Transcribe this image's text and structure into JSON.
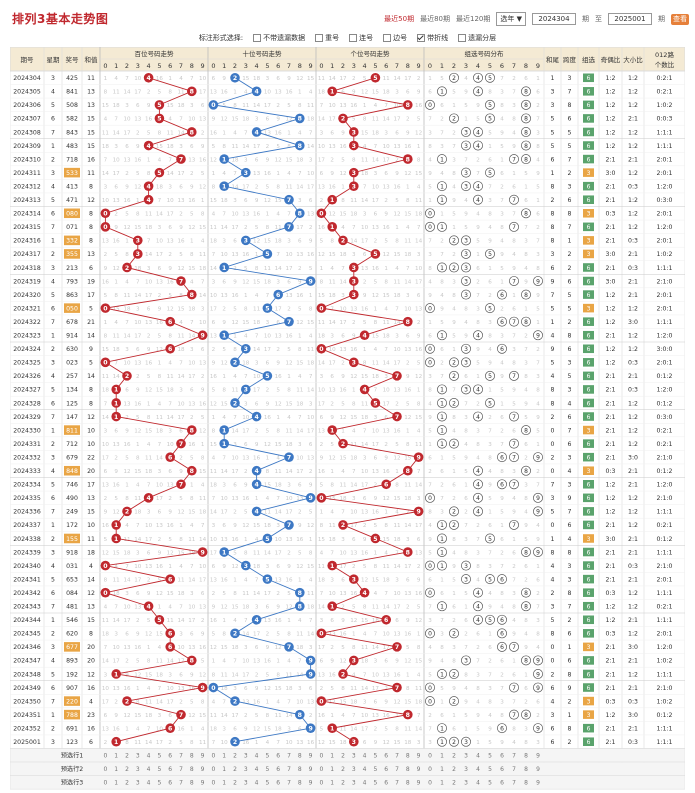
{
  "app": {
    "title": "排列3基本走势图",
    "period_links": [
      "最近50期",
      "最近80期",
      "最近120期"
    ],
    "active_period_index": 0,
    "select_label": "选年",
    "from_value": "2024304",
    "from_suffix": "期",
    "to_label": "至",
    "to_value": "2025001",
    "to_suffix": "期",
    "go_label": "查看"
  },
  "filters": {
    "label": "标注形式选择:",
    "options": [
      {
        "label": "不带遗漏数据",
        "checked": false
      },
      {
        "label": "重号",
        "checked": false
      },
      {
        "label": "连号",
        "checked": false
      },
      {
        "label": "边号",
        "checked": false
      },
      {
        "label": "带折线",
        "checked": true
      },
      {
        "label": "遗漏分层",
        "checked": false
      }
    ]
  },
  "headers": {
    "issue": "期号",
    "weekday": "星期",
    "prize": "奖号",
    "sum": "和值",
    "hundreds": "百位号码走势",
    "tens": "十位号码走势",
    "units": "个位号码走势",
    "group": "组选号码分布",
    "span_sum": "和尾",
    "span": "跨度",
    "group_type": "组选",
    "odd_even": "奇偶比",
    "big_small": "大小比",
    "prime_ratio": "012路",
    "prime_ratio2": "个数比",
    "digits": [
      "0",
      "1",
      "2",
      "3",
      "4",
      "5",
      "6",
      "7",
      "8",
      "9"
    ]
  },
  "rows": [
    {
      "issue": "2024304",
      "wk": "3",
      "num": "425",
      "sum": "11",
      "tail": "1",
      "span": "3",
      "type": "6",
      "oe": "1:2",
      "bs": "1:2",
      "r": "0:2:1"
    },
    {
      "issue": "2024305",
      "wk": "4",
      "num": "841",
      "sum": "13",
      "tail": "3",
      "span": "7",
      "type": "6",
      "oe": "1:2",
      "bs": "1:2",
      "r": "0:2:1"
    },
    {
      "issue": "2024306",
      "wk": "5",
      "num": "508",
      "sum": "13",
      "tail": "3",
      "span": "8",
      "type": "6",
      "oe": "1:2",
      "bs": "1:2",
      "r": "1:0:2"
    },
    {
      "issue": "2024307",
      "wk": "6",
      "num": "582",
      "sum": "15",
      "tail": "5",
      "span": "6",
      "type": "6",
      "oe": "1:2",
      "bs": "2:1",
      "r": "0:0:3"
    },
    {
      "issue": "2024308",
      "wk": "7",
      "num": "843",
      "sum": "15",
      "tail": "5",
      "span": "5",
      "type": "6",
      "oe": "1:2",
      "bs": "1:2",
      "r": "1:1:1"
    },
    {
      "issue": "2024309",
      "wk": "1",
      "num": "483",
      "sum": "15",
      "tail": "5",
      "span": "5",
      "type": "6",
      "oe": "1:2",
      "bs": "1:2",
      "r": "1:1:1"
    },
    {
      "issue": "2024310",
      "wk": "2",
      "num": "718",
      "sum": "16",
      "tail": "6",
      "span": "7",
      "type": "6",
      "oe": "2:1",
      "bs": "2:1",
      "r": "2:0:1"
    },
    {
      "issue": "2024311",
      "wk": "3",
      "num": "533",
      "sum": "11",
      "tail": "1",
      "span": "2",
      "type": "3",
      "oe": "3:0",
      "bs": "1:2",
      "r": "2:0:1"
    },
    {
      "issue": "2024312",
      "wk": "4",
      "num": "413",
      "sum": "8",
      "tail": "8",
      "span": "3",
      "type": "6",
      "oe": "2:1",
      "bs": "0:3",
      "r": "1:2:0"
    },
    {
      "issue": "2024313",
      "wk": "5",
      "num": "471",
      "sum": "12",
      "tail": "2",
      "span": "6",
      "type": "6",
      "oe": "2:1",
      "bs": "1:2",
      "r": "0:3:0"
    },
    {
      "issue": "2024314",
      "wk": "6",
      "num": "080",
      "sum": "8",
      "tail": "8",
      "span": "8",
      "type": "3",
      "oe": "0:3",
      "bs": "1:2",
      "r": "2:0:1"
    },
    {
      "issue": "2024315",
      "wk": "7",
      "num": "071",
      "sum": "8",
      "tail": "8",
      "span": "7",
      "type": "6",
      "oe": "2:1",
      "bs": "1:2",
      "r": "1:2:0"
    },
    {
      "issue": "2024316",
      "wk": "1",
      "num": "332",
      "sum": "8",
      "tail": "8",
      "span": "1",
      "type": "3",
      "oe": "2:1",
      "bs": "0:3",
      "r": "2:0:1"
    },
    {
      "issue": "2024317",
      "wk": "2",
      "num": "355",
      "sum": "13",
      "tail": "3",
      "span": "2",
      "type": "3",
      "oe": "3:0",
      "bs": "2:1",
      "r": "1:0:2"
    },
    {
      "issue": "2024318",
      "wk": "3",
      "num": "213",
      "sum": "6",
      "tail": "6",
      "span": "2",
      "type": "6",
      "oe": "2:1",
      "bs": "0:3",
      "r": "1:1:1"
    },
    {
      "issue": "2024319",
      "wk": "4",
      "num": "793",
      "sum": "19",
      "tail": "9",
      "span": "6",
      "type": "6",
      "oe": "3:0",
      "bs": "2:1",
      "r": "2:1:0"
    },
    {
      "issue": "2024320",
      "wk": "5",
      "num": "863",
      "sum": "17",
      "tail": "7",
      "span": "5",
      "type": "6",
      "oe": "1:2",
      "bs": "2:1",
      "r": "2:0:1"
    },
    {
      "issue": "2024321",
      "wk": "6",
      "num": "050",
      "sum": "5",
      "tail": "5",
      "span": "5",
      "type": "3",
      "oe": "1:2",
      "bs": "1:2",
      "r": "2:0:1"
    },
    {
      "issue": "2024322",
      "wk": "7",
      "num": "678",
      "sum": "21",
      "tail": "1",
      "span": "2",
      "type": "6",
      "oe": "1:2",
      "bs": "3:0",
      "r": "1:1:1"
    },
    {
      "issue": "2024323",
      "wk": "1",
      "num": "914",
      "sum": "14",
      "tail": "4",
      "span": "8",
      "type": "6",
      "oe": "2:1",
      "bs": "1:2",
      "r": "1:2:0"
    },
    {
      "issue": "2024324",
      "wk": "2",
      "num": "630",
      "sum": "9",
      "tail": "9",
      "span": "6",
      "type": "6",
      "oe": "1:2",
      "bs": "1:2",
      "r": "3:0:0"
    },
    {
      "issue": "2024325",
      "wk": "3",
      "num": "023",
      "sum": "5",
      "tail": "5",
      "span": "3",
      "type": "6",
      "oe": "1:2",
      "bs": "0:3",
      "r": "2:0:1"
    },
    {
      "issue": "2024326",
      "wk": "4",
      "num": "257",
      "sum": "14",
      "tail": "4",
      "span": "5",
      "type": "6",
      "oe": "2:1",
      "bs": "2:1",
      "r": "0:1:2"
    },
    {
      "issue": "2024327",
      "wk": "5",
      "num": "134",
      "sum": "8",
      "tail": "8",
      "span": "3",
      "type": "6",
      "oe": "2:1",
      "bs": "0:3",
      "r": "1:2:0"
    },
    {
      "issue": "2024328",
      "wk": "6",
      "num": "125",
      "sum": "8",
      "tail": "8",
      "span": "4",
      "type": "6",
      "oe": "2:1",
      "bs": "1:2",
      "r": "0:1:2"
    },
    {
      "issue": "2024329",
      "wk": "7",
      "num": "147",
      "sum": "12",
      "tail": "2",
      "span": "6",
      "type": "6",
      "oe": "2:1",
      "bs": "1:2",
      "r": "0:3:0"
    },
    {
      "issue": "2024330",
      "wk": "1",
      "num": "811",
      "sum": "10",
      "tail": "0",
      "span": "7",
      "type": "3",
      "oe": "2:1",
      "bs": "1:2",
      "r": "0:2:1"
    },
    {
      "issue": "2024331",
      "wk": "2",
      "num": "712",
      "sum": "10",
      "tail": "0",
      "span": "6",
      "type": "6",
      "oe": "2:1",
      "bs": "1:2",
      "r": "0:2:1"
    },
    {
      "issue": "2024332",
      "wk": "3",
      "num": "679",
      "sum": "22",
      "tail": "2",
      "span": "3",
      "type": "6",
      "oe": "2:1",
      "bs": "3:0",
      "r": "2:1:0"
    },
    {
      "issue": "2024333",
      "wk": "4",
      "num": "848",
      "sum": "20",
      "tail": "0",
      "span": "4",
      "type": "3",
      "oe": "0:3",
      "bs": "2:1",
      "r": "0:1:2"
    },
    {
      "issue": "2024334",
      "wk": "5",
      "num": "746",
      "sum": "17",
      "tail": "7",
      "span": "3",
      "type": "6",
      "oe": "1:2",
      "bs": "2:1",
      "r": "1:2:0"
    },
    {
      "issue": "2024335",
      "wk": "6",
      "num": "490",
      "sum": "13",
      "tail": "3",
      "span": "9",
      "type": "6",
      "oe": "1:2",
      "bs": "1:2",
      "r": "2:1:0"
    },
    {
      "issue": "2024336",
      "wk": "7",
      "num": "249",
      "sum": "15",
      "tail": "5",
      "span": "7",
      "type": "6",
      "oe": "1:2",
      "bs": "1:2",
      "r": "1:1:1"
    },
    {
      "issue": "2024337",
      "wk": "1",
      "num": "172",
      "sum": "10",
      "tail": "0",
      "span": "6",
      "type": "6",
      "oe": "2:1",
      "bs": "1:2",
      "r": "0:2:1"
    },
    {
      "issue": "2024338",
      "wk": "2",
      "num": "155",
      "sum": "11",
      "tail": "1",
      "span": "4",
      "type": "3",
      "oe": "3:0",
      "bs": "2:1",
      "r": "0:1:2"
    },
    {
      "issue": "2024339",
      "wk": "3",
      "num": "918",
      "sum": "18",
      "tail": "8",
      "span": "8",
      "type": "6",
      "oe": "2:1",
      "bs": "2:1",
      "r": "1:1:1"
    },
    {
      "issue": "2024340",
      "wk": "4",
      "num": "031",
      "sum": "4",
      "tail": "4",
      "span": "3",
      "type": "6",
      "oe": "2:1",
      "bs": "0:3",
      "r": "2:1:0"
    },
    {
      "issue": "2024341",
      "wk": "5",
      "num": "653",
      "sum": "14",
      "tail": "4",
      "span": "3",
      "type": "6",
      "oe": "2:1",
      "bs": "2:1",
      "r": "2:0:1"
    },
    {
      "issue": "2024342",
      "wk": "6",
      "num": "084",
      "sum": "12",
      "tail": "2",
      "span": "8",
      "type": "6",
      "oe": "0:3",
      "bs": "1:2",
      "r": "1:1:1"
    },
    {
      "issue": "2024343",
      "wk": "7",
      "num": "481",
      "sum": "13",
      "tail": "3",
      "span": "7",
      "type": "6",
      "oe": "1:2",
      "bs": "1:2",
      "r": "0:2:1"
    },
    {
      "issue": "2024344",
      "wk": "1",
      "num": "546",
      "sum": "15",
      "tail": "5",
      "span": "2",
      "type": "6",
      "oe": "1:2",
      "bs": "2:1",
      "r": "1:1:1"
    },
    {
      "issue": "2024345",
      "wk": "2",
      "num": "620",
      "sum": "8",
      "tail": "8",
      "span": "6",
      "type": "6",
      "oe": "0:3",
      "bs": "1:2",
      "r": "2:0:1"
    },
    {
      "issue": "2024346",
      "wk": "3",
      "num": "677",
      "sum": "20",
      "tail": "0",
      "span": "1",
      "type": "3",
      "oe": "2:1",
      "bs": "3:0",
      "r": "1:2:0"
    },
    {
      "issue": "2024347",
      "wk": "4",
      "num": "893",
      "sum": "20",
      "tail": "0",
      "span": "6",
      "type": "6",
      "oe": "2:1",
      "bs": "2:1",
      "r": "1:0:2"
    },
    {
      "issue": "2024348",
      "wk": "5",
      "num": "192",
      "sum": "12",
      "tail": "2",
      "span": "8",
      "type": "6",
      "oe": "2:1",
      "bs": "1:2",
      "r": "1:1:1"
    },
    {
      "issue": "2024349",
      "wk": "6",
      "num": "907",
      "sum": "16",
      "tail": "6",
      "span": "9",
      "type": "6",
      "oe": "2:1",
      "bs": "2:1",
      "r": "2:1:0"
    },
    {
      "issue": "2024350",
      "wk": "7",
      "num": "220",
      "sum": "4",
      "tail": "4",
      "span": "2",
      "type": "3",
      "oe": "0:3",
      "bs": "0:3",
      "r": "1:0:2"
    },
    {
      "issue": "2024351",
      "wk": "1",
      "num": "788",
      "sum": "23",
      "tail": "3",
      "span": "1",
      "type": "3",
      "oe": "1:2",
      "bs": "3:0",
      "r": "0:1:2"
    },
    {
      "issue": "2024352",
      "wk": "2",
      "num": "691",
      "sum": "16",
      "tail": "6",
      "span": "8",
      "type": "6",
      "oe": "2:1",
      "bs": "2:1",
      "r": "1:1:1"
    },
    {
      "issue": "2025001",
      "wk": "3",
      "num": "123",
      "sum": "6",
      "tail": "6",
      "span": "2",
      "type": "6",
      "oe": "2:1",
      "bs": "0:3",
      "r": "1:1:1"
    }
  ],
  "footer": {
    "rows": [
      "预选行1",
      "预选行2",
      "预选行3"
    ]
  },
  "colors": {
    "red": "#c0282e",
    "blue": "#3d78c4",
    "header_bg": "#f4ead4",
    "grid": "#dcdcdc",
    "green": "#5aa36c",
    "orange": "#e9a545"
  }
}
